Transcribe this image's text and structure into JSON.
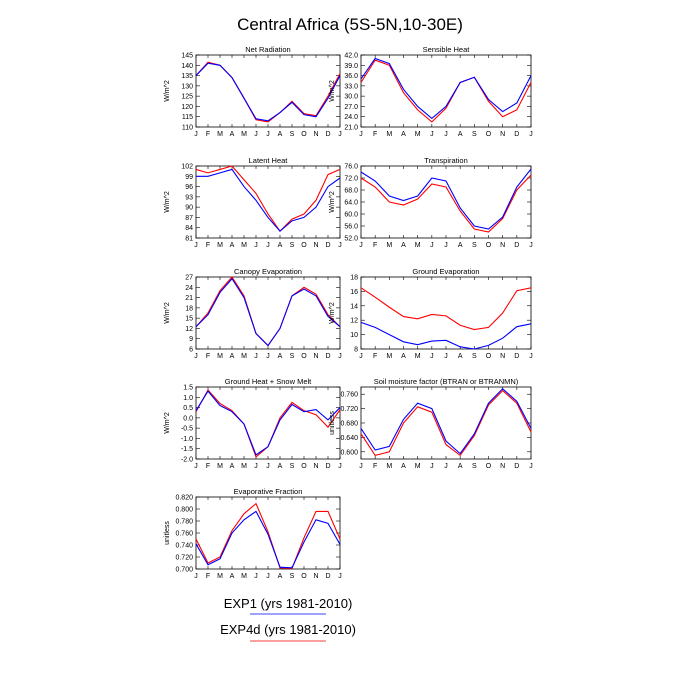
{
  "figure": {
    "title": "Central Africa (5S-5N,10-30E)",
    "legend": [
      {
        "label": "EXP1 (yrs 1981-2010)",
        "color": "#0000ff"
      },
      {
        "label": "EXP4d (yrs 1981-2010)",
        "color": "#ff0000"
      }
    ]
  },
  "chart_data": [
    {
      "type": "line",
      "title": "Net Radiation",
      "ylabel": "W/m^2",
      "ylim": [
        110,
        145
      ],
      "yticks": [
        "110",
        "115",
        "120",
        "125",
        "130",
        "135",
        "140",
        "145"
      ],
      "categories": [
        "J",
        "F",
        "M",
        "A",
        "M",
        "J",
        "J",
        "A",
        "S",
        "O",
        "N",
        "D",
        "J"
      ],
      "series": [
        {
          "name": "EXP1 (yrs 1981-2010)",
          "color": "#0000ff",
          "values": [
            135,
            141,
            140,
            134,
            124,
            114,
            113,
            117,
            122,
            116,
            115,
            124,
            135
          ]
        },
        {
          "name": "EXP4d (yrs 1981-2010)",
          "color": "#ff0000",
          "values": [
            135,
            141.5,
            140,
            134,
            124,
            113.5,
            112.5,
            117,
            122.5,
            116.5,
            115.5,
            125,
            136
          ]
        }
      ]
    },
    {
      "type": "line",
      "title": "Sensible Heat",
      "ylabel": "W/m^2",
      "ylim": [
        21,
        42
      ],
      "yticks": [
        "21.0",
        "24.0",
        "27.0",
        "30.0",
        "33.0",
        "36.0",
        "39.0",
        "42.0"
      ],
      "categories": [
        "J",
        "F",
        "M",
        "A",
        "M",
        "J",
        "J",
        "A",
        "S",
        "O",
        "N",
        "D",
        "J"
      ],
      "series": [
        {
          "name": "EXP1 (yrs 1981-2010)",
          "color": "#0000ff",
          "values": [
            35,
            41,
            39.5,
            32,
            27,
            23.5,
            27,
            34,
            35.5,
            29,
            25.5,
            28,
            36
          ]
        },
        {
          "name": "EXP4d (yrs 1981-2010)",
          "color": "#ff0000",
          "values": [
            34,
            40.5,
            39,
            31,
            26,
            22.5,
            26.5,
            34,
            35.5,
            28.5,
            24,
            26,
            34
          ]
        }
      ]
    },
    {
      "type": "line",
      "title": "Latent Heat",
      "ylabel": "W/m^2",
      "ylim": [
        81,
        102
      ],
      "yticks": [
        "81",
        "84",
        "87",
        "90",
        "93",
        "96",
        "99",
        "102"
      ],
      "categories": [
        "J",
        "F",
        "M",
        "A",
        "M",
        "J",
        "J",
        "A",
        "S",
        "O",
        "N",
        "D",
        "J"
      ],
      "series": [
        {
          "name": "EXP1 (yrs 1981-2010)",
          "color": "#0000ff",
          "values": [
            99,
            99,
            100,
            101,
            96,
            92,
            87,
            83,
            86,
            87,
            90,
            96,
            98.5
          ]
        },
        {
          "name": "EXP4d (yrs 1981-2010)",
          "color": "#ff0000",
          "values": [
            101,
            100,
            101,
            102,
            98,
            94,
            88,
            83,
            86.5,
            88,
            92,
            99.5,
            101
          ]
        }
      ]
    },
    {
      "type": "line",
      "title": "Transpiration",
      "ylabel": "W/m^2",
      "ylim": [
        52,
        76
      ],
      "yticks": [
        "52.0",
        "56.0",
        "60.0",
        "64.0",
        "68.0",
        "72.0",
        "76.0"
      ],
      "categories": [
        "J",
        "F",
        "M",
        "A",
        "M",
        "J",
        "J",
        "A",
        "S",
        "O",
        "N",
        "D",
        "J"
      ],
      "series": [
        {
          "name": "EXP1 (yrs 1981-2010)",
          "color": "#0000ff",
          "values": [
            74,
            71,
            66,
            64.5,
            66,
            72,
            71,
            62,
            56,
            55,
            59,
            69,
            75
          ]
        },
        {
          "name": "EXP4d (yrs 1981-2010)",
          "color": "#ff0000",
          "values": [
            72,
            69,
            64,
            63,
            65,
            70,
            69,
            61,
            55,
            54,
            58.5,
            68,
            73
          ]
        }
      ]
    },
    {
      "type": "line",
      "title": "Canopy Evaporation",
      "ylabel": "W/m^2",
      "ylim": [
        6,
        27
      ],
      "yticks": [
        "6",
        "9",
        "12",
        "15",
        "18",
        "21",
        "24",
        "27"
      ],
      "categories": [
        "J",
        "F",
        "M",
        "A",
        "M",
        "J",
        "J",
        "A",
        "S",
        "O",
        "N",
        "D",
        "J"
      ],
      "series": [
        {
          "name": "EXP1 (yrs 1981-2010)",
          "color": "#0000ff",
          "values": [
            12.5,
            16,
            22.5,
            26.5,
            21,
            10.5,
            7,
            12,
            21.5,
            23.5,
            21.5,
            15.5,
            12.5
          ]
        },
        {
          "name": "EXP4d (yrs 1981-2010)",
          "color": "#ff0000",
          "values": [
            12.5,
            16.5,
            23,
            27,
            21.5,
            10.5,
            7,
            12,
            21.5,
            24,
            22,
            16,
            12.5
          ]
        }
      ]
    },
    {
      "type": "line",
      "title": "Ground Evaporation",
      "ylabel": "W/m^2",
      "ylim": [
        8,
        18
      ],
      "yticks": [
        "8",
        "10",
        "12",
        "14",
        "16",
        "18"
      ],
      "categories": [
        "J",
        "F",
        "M",
        "A",
        "M",
        "J",
        "J",
        "A",
        "S",
        "O",
        "N",
        "D",
        "J"
      ],
      "series": [
        {
          "name": "EXP1 (yrs 1981-2010)",
          "color": "#0000ff",
          "values": [
            11.7,
            11,
            10,
            9,
            8.6,
            9.1,
            9.2,
            8.3,
            8,
            8.5,
            9.5,
            11.1,
            11.5
          ]
        },
        {
          "name": "EXP4d (yrs 1981-2010)",
          "color": "#ff0000",
          "values": [
            16.5,
            15.2,
            13.8,
            12.5,
            12.2,
            12.8,
            12.6,
            11.3,
            10.7,
            11,
            13,
            16.1,
            16.5
          ]
        }
      ]
    },
    {
      "type": "line",
      "title": "Ground Heat + Snow Melt",
      "ylabel": "W/m^2",
      "ylim": [
        -2,
        1.5
      ],
      "yticks": [
        "-2.0",
        "-1.5",
        "-1.0",
        "-0.5",
        "0.0",
        "0.5",
        "1.0",
        "1.5"
      ],
      "categories": [
        "J",
        "F",
        "M",
        "A",
        "M",
        "J",
        "J",
        "A",
        "S",
        "O",
        "N",
        "D",
        "J"
      ],
      "series": [
        {
          "name": "EXP1 (yrs 1981-2010)",
          "color": "#0000ff",
          "values": [
            0.35,
            1.3,
            0.6,
            0.3,
            -0.3,
            -1.8,
            -1.4,
            -0.1,
            0.65,
            0.3,
            0.4,
            -0.1,
            0.5
          ]
        },
        {
          "name": "EXP4d (yrs 1981-2010)",
          "color": "#ff0000",
          "values": [
            0.3,
            1.35,
            0.7,
            0.35,
            -0.3,
            -1.9,
            -1.4,
            0,
            0.75,
            0.35,
            0.15,
            -0.45,
            0.4
          ]
        }
      ]
    },
    {
      "type": "line",
      "title": "Soil moisture factor (BTRAN or BTRANMN)",
      "ylabel": "unitless",
      "ylim": [
        0.58,
        0.78
      ],
      "yticks": [
        "0.600",
        "0.640",
        "0.680",
        "0.720",
        "0.760"
      ],
      "categories": [
        "J",
        "F",
        "M",
        "A",
        "M",
        "J",
        "J",
        "A",
        "S",
        "O",
        "N",
        "D",
        "J"
      ],
      "series": [
        {
          "name": "EXP1 (yrs 1981-2010)",
          "color": "#0000ff",
          "values": [
            0.665,
            0.605,
            0.615,
            0.69,
            0.735,
            0.72,
            0.63,
            0.595,
            0.65,
            0.735,
            0.775,
            0.74,
            0.665
          ]
        },
        {
          "name": "EXP4d (yrs 1981-2010)",
          "color": "#ff0000",
          "values": [
            0.65,
            0.59,
            0.6,
            0.68,
            0.725,
            0.71,
            0.62,
            0.59,
            0.645,
            0.73,
            0.77,
            0.735,
            0.655
          ]
        }
      ]
    },
    {
      "type": "line",
      "title": "Evaporative Fraction",
      "ylabel": "unitless",
      "ylim": [
        0.7,
        0.82
      ],
      "yticks": [
        "0.700",
        "0.720",
        "0.740",
        "0.760",
        "0.780",
        "0.800",
        "0.820"
      ],
      "categories": [
        "J",
        "F",
        "M",
        "A",
        "M",
        "J",
        "J",
        "A",
        "S",
        "O",
        "N",
        "D",
        "J"
      ],
      "series": [
        {
          "name": "EXP1 (yrs 1981-2010)",
          "color": "#0000ff",
          "values": [
            0.742,
            0.707,
            0.717,
            0.76,
            0.782,
            0.796,
            0.758,
            0.703,
            0.702,
            0.745,
            0.782,
            0.776,
            0.741
          ]
        },
        {
          "name": "EXP4d (yrs 1981-2010)",
          "color": "#ff0000",
          "values": [
            0.75,
            0.71,
            0.72,
            0.764,
            0.792,
            0.809,
            0.762,
            0.702,
            0.701,
            0.752,
            0.796,
            0.796,
            0.75
          ]
        }
      ]
    }
  ]
}
